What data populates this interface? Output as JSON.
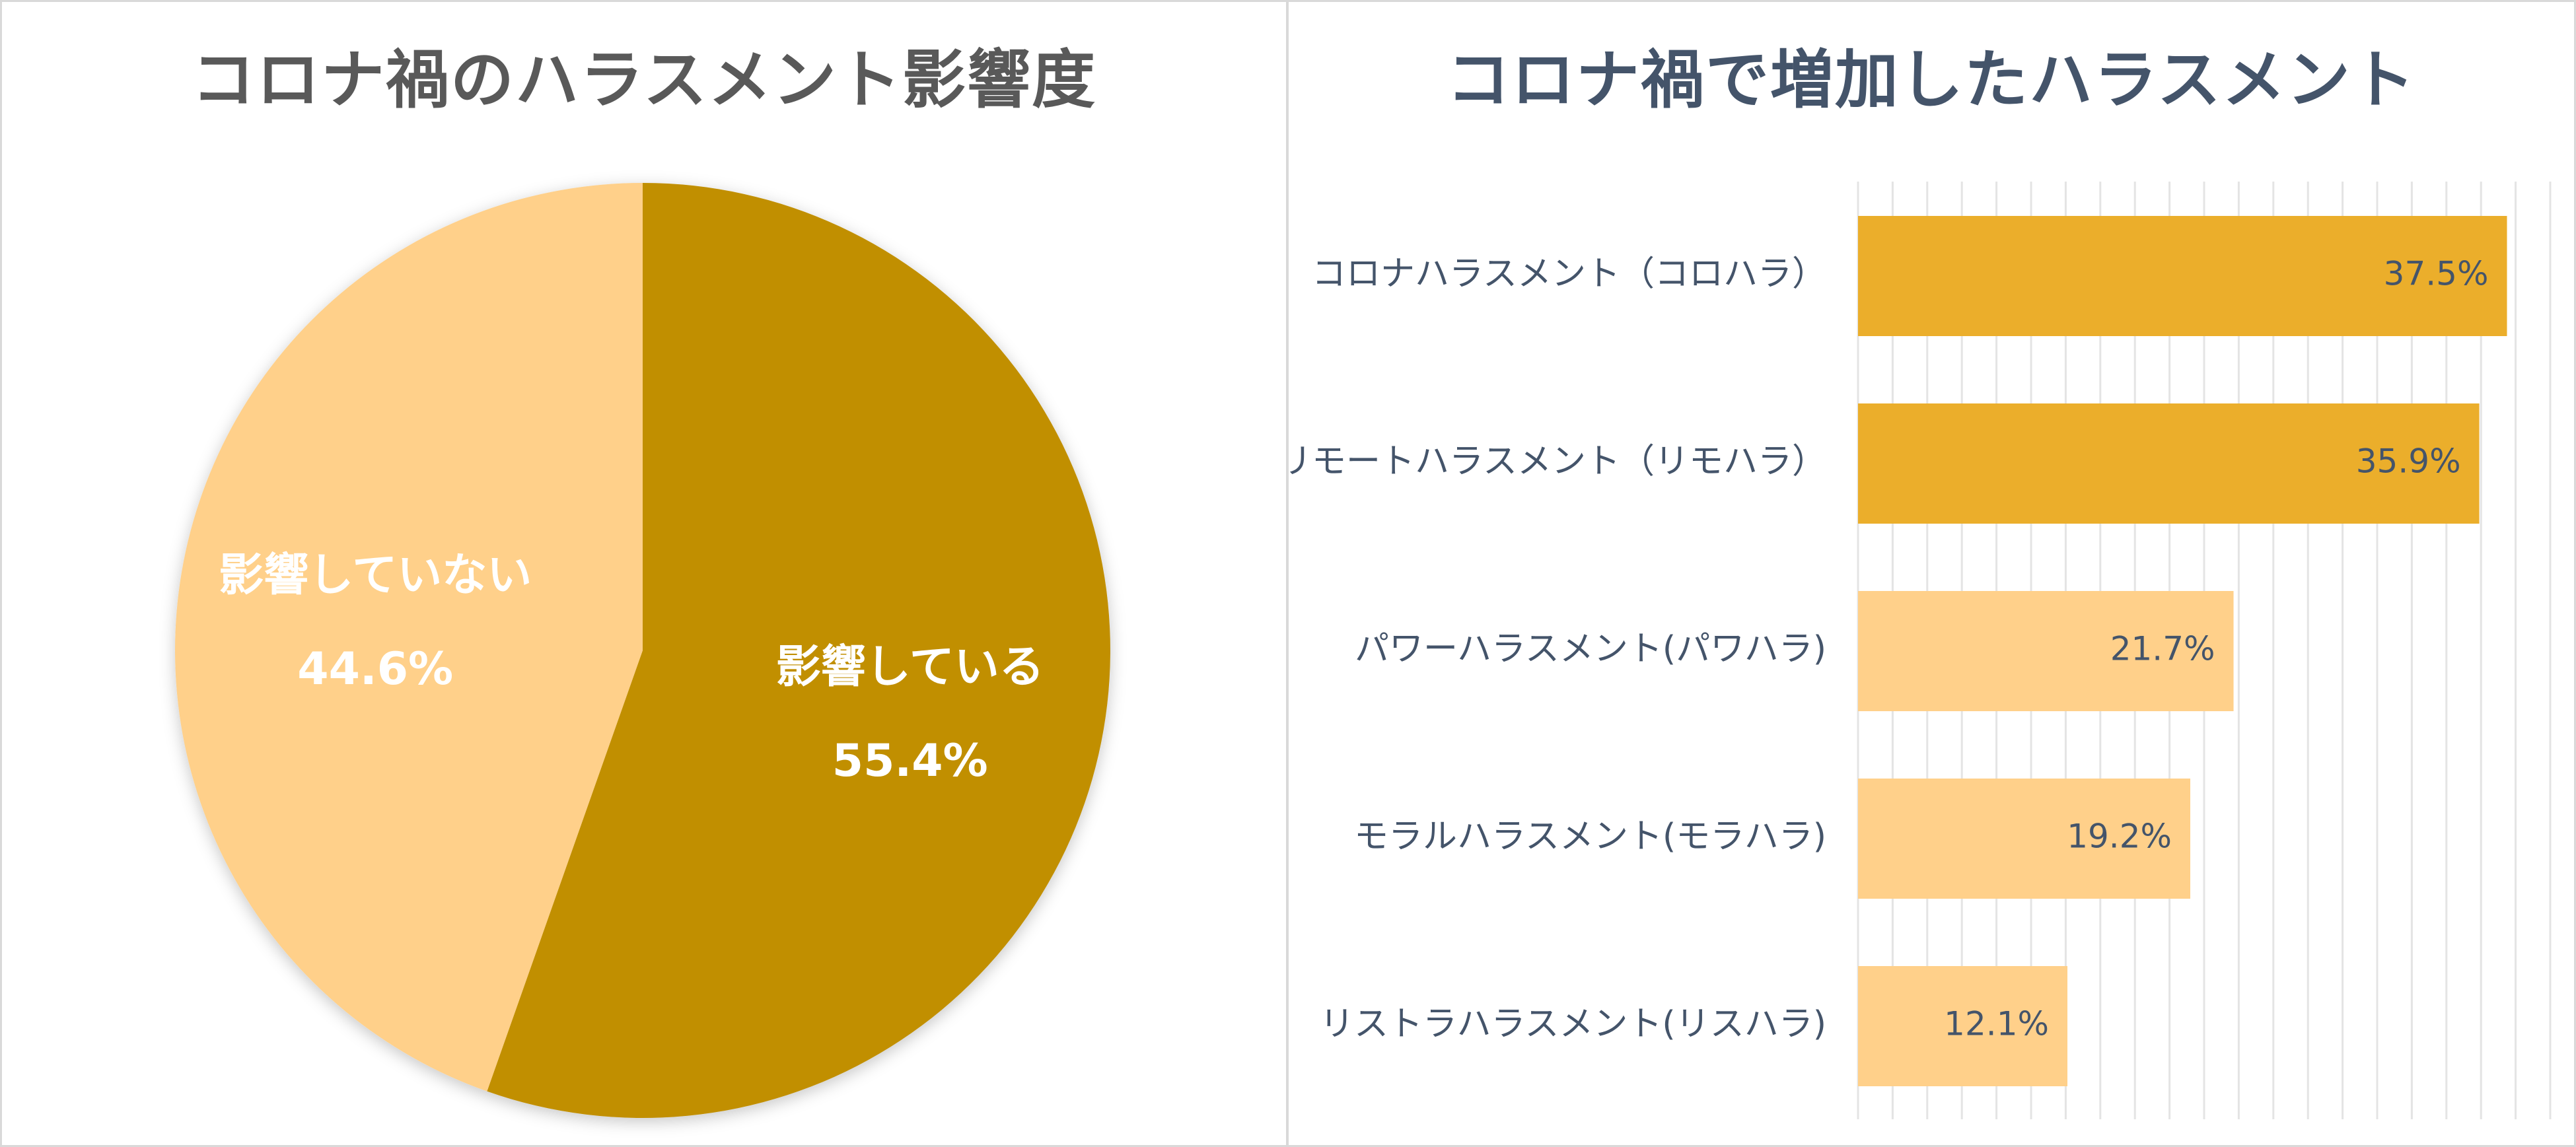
{
  "colors": {
    "dark": "#C18F00",
    "light": "#FFD08A",
    "bar_dark": "#EBAE2B",
    "bar_light": "#FFD08A",
    "pie_label": "#FFFFFF",
    "bar_text": "#44546A",
    "grid": "#E4E4E4"
  },
  "chart_data": [
    {
      "type": "pie",
      "title": "コロナ禍のハラスメント影響度",
      "slices": [
        {
          "label": "影響している",
          "value": 55.4,
          "value_label": "55.4%"
        },
        {
          "label": "影響していない",
          "value": 44.6,
          "value_label": "44.6%"
        }
      ],
      "start_angle_deg": 0,
      "direction": "clockwise"
    },
    {
      "type": "bar",
      "orientation": "horizontal",
      "title": "コロナ禍で増加したハラスメント",
      "categories": [
        "コロナハラスメント（コロハラ）",
        "リモートハラスメント（リモハラ）",
        "パワーハラスメント(パワハラ)",
        "モラルハラスメント(モラハラ)",
        "リストラハラスメント(リスハラ)"
      ],
      "values": [
        37.5,
        35.9,
        21.7,
        19.2,
        12.1
      ],
      "value_labels": [
        "37.5%",
        "35.9%",
        "21.7%",
        "19.2%",
        "12.1%"
      ],
      "highlight": [
        true,
        true,
        false,
        false,
        false
      ],
      "xlim": [
        0,
        40
      ],
      "grid": true,
      "xlabel": "",
      "ylabel": ""
    }
  ]
}
